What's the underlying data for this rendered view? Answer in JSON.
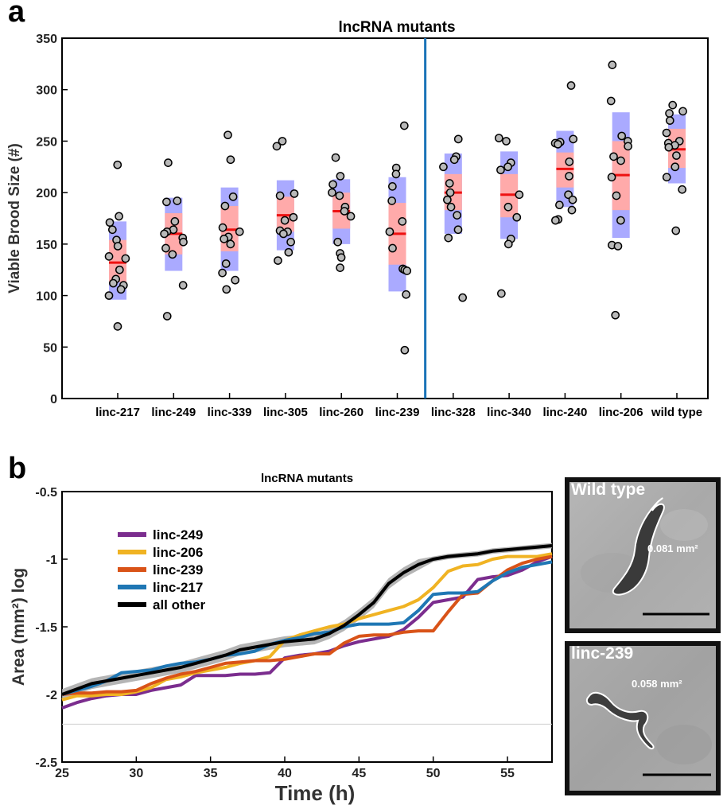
{
  "panels": {
    "a": {
      "letter": "a"
    },
    "b": {
      "letter": "b"
    }
  },
  "chart_data": [
    {
      "type": "scatter",
      "title": "lncRNA mutants",
      "xlabel": "",
      "ylabel": "Viable Brood Size (#)",
      "ylim": [
        0,
        350
      ],
      "yticks": [
        0,
        50,
        100,
        150,
        200,
        250,
        300,
        350
      ],
      "grid": false,
      "divider_between": [
        "linc-239",
        "linc-328"
      ],
      "colors": {
        "mean": "#ee1111",
        "sd_band": "#aaaaff",
        "sem_band": "#ffaaaa",
        "point_fill": "#b9b9b9",
        "divider": "#1a73b8"
      },
      "categories": [
        "linc-217",
        "linc-249",
        "linc-339",
        "linc-305",
        "linc-260",
        "linc-239",
        "linc-328",
        "linc-340",
        "linc-240",
        "linc-206",
        "wild type"
      ],
      "groups": [
        {
          "label": "linc-217",
          "mean": 132,
          "sem": [
            113,
            154
          ],
          "sd": [
            96,
            172
          ],
          "points": [
            227,
            177,
            171,
            164,
            154,
            148,
            138,
            136,
            125,
            116,
            112,
            110,
            106,
            100,
            70
          ]
        },
        {
          "label": "linc-249",
          "mean": 160,
          "sem": [
            140,
            180
          ],
          "sd": [
            124,
            195
          ],
          "points": [
            229,
            192,
            191,
            172,
            164,
            162,
            160,
            156,
            152,
            146,
            140,
            110,
            80
          ]
        },
        {
          "label": "linc-339",
          "mean": 164,
          "sem": [
            143,
            187
          ],
          "sd": [
            124,
            205
          ],
          "points": [
            256,
            232,
            196,
            187,
            166,
            162,
            157,
            155,
            150,
            131,
            122,
            115,
            106
          ]
        },
        {
          "label": "linc-305",
          "mean": 178,
          "sem": [
            162,
            196
          ],
          "sd": [
            144,
            212
          ],
          "points": [
            250,
            245,
            199,
            197,
            176,
            173,
            163,
            162,
            160,
            152,
            142,
            134
          ]
        },
        {
          "label": "linc-260",
          "mean": 182,
          "sem": [
            165,
            200
          ],
          "sd": [
            150,
            213
          ],
          "points": [
            234,
            216,
            208,
            200,
            197,
            186,
            182,
            177,
            152,
            141,
            137,
            127
          ]
        },
        {
          "label": "linc-239",
          "mean": 160,
          "sem": [
            130,
            190
          ],
          "sd": [
            104,
            215
          ],
          "points": [
            265,
            224,
            218,
            206,
            192,
            172,
            162,
            146,
            126,
            125,
            124,
            101,
            47
          ]
        },
        {
          "label": "linc-328",
          "mean": 200,
          "sem": [
            183,
            218
          ],
          "sd": [
            160,
            238
          ],
          "points": [
            252,
            235,
            232,
            225,
            209,
            200,
            193,
            186,
            178,
            164,
            156,
            98
          ]
        },
        {
          "label": "linc-340",
          "mean": 198,
          "sem": [
            176,
            218
          ],
          "sd": [
            155,
            240
          ],
          "points": [
            253,
            250,
            229,
            225,
            222,
            198,
            186,
            176,
            155,
            150,
            102
          ]
        },
        {
          "label": "linc-240",
          "mean": 223,
          "sem": [
            205,
            239
          ],
          "sd": [
            186,
            260
          ],
          "points": [
            304,
            252,
            249,
            248,
            247,
            230,
            216,
            198,
            193,
            188,
            183,
            174,
            173
          ]
        },
        {
          "label": "linc-206",
          "mean": 217,
          "sem": [
            183,
            250
          ],
          "sd": [
            156,
            278
          ],
          "points": [
            324,
            289,
            255,
            250,
            245,
            235,
            231,
            215,
            197,
            173,
            149,
            148,
            81
          ]
        },
        {
          "label": "wild type",
          "mean": 242,
          "sem": [
            224,
            262
          ],
          "sd": [
            209,
            276
          ],
          "points": [
            285,
            279,
            277,
            270,
            258,
            250,
            248,
            246,
            244,
            236,
            225,
            215,
            203,
            163
          ]
        }
      ]
    },
    {
      "type": "line",
      "title": "lncRNA mutants",
      "xlabel": "Time (h)",
      "ylabel": "Area (mm²) log",
      "xlim": [
        25,
        58
      ],
      "ylim": [
        -2.5,
        -0.5
      ],
      "xticks": [
        25,
        30,
        35,
        40,
        45,
        50,
        55
      ],
      "yticks": [
        -2.5,
        -2,
        -1.5,
        -1,
        -0.5
      ],
      "grid": false,
      "legend_position": "top-left",
      "reference_line_y": -2.22,
      "x": [
        25,
        26,
        27,
        28,
        29,
        30,
        31,
        32,
        33,
        34,
        35,
        36,
        37,
        38,
        39,
        40,
        41,
        42,
        43,
        44,
        45,
        46,
        47,
        48,
        49,
        50,
        51,
        52,
        53,
        54,
        55,
        56,
        57,
        58
      ],
      "band": {
        "upper": [
          -1.96,
          -1.92,
          -1.88,
          -1.86,
          -1.84,
          -1.82,
          -1.8,
          -1.78,
          -1.76,
          -1.73,
          -1.7,
          -1.67,
          -1.63,
          -1.61,
          -1.59,
          -1.57,
          -1.56,
          -1.55,
          -1.51,
          -1.45,
          -1.37,
          -1.28,
          -1.14,
          -1.06,
          -1.0,
          -0.98,
          -0.96,
          -0.95,
          -0.94,
          -0.92,
          -0.91,
          -0.9,
          -0.89,
          -0.88
        ],
        "lower": [
          -2.04,
          -2.0,
          -1.96,
          -1.94,
          -1.92,
          -1.9,
          -1.88,
          -1.86,
          -1.84,
          -1.81,
          -1.78,
          -1.75,
          -1.71,
          -1.69,
          -1.67,
          -1.65,
          -1.64,
          -1.63,
          -1.59,
          -1.53,
          -1.45,
          -1.36,
          -1.22,
          -1.14,
          -1.08,
          -1.02,
          -1.0,
          -0.99,
          -0.98,
          -0.96,
          -0.95,
          -0.94,
          -0.93,
          -0.92
        ]
      },
      "series": [
        {
          "name": "linc-249",
          "color": "#7b2d8e",
          "values": [
            -2.1,
            -2.06,
            -2.03,
            -2.01,
            -2.0,
            -2.0,
            -1.97,
            -1.95,
            -1.93,
            -1.86,
            -1.86,
            -1.86,
            -1.85,
            -1.85,
            -1.84,
            -1.73,
            -1.71,
            -1.7,
            -1.68,
            -1.64,
            -1.61,
            -1.59,
            -1.57,
            -1.52,
            -1.43,
            -1.32,
            -1.3,
            -1.28,
            -1.15,
            -1.13,
            -1.12,
            -1.08,
            -1.02,
            -0.98
          ]
        },
        {
          "name": "linc-206",
          "color": "#f0b323",
          "values": [
            -2.04,
            -2.01,
            -2.01,
            -2.0,
            -2.0,
            -1.98,
            -1.95,
            -1.89,
            -1.87,
            -1.84,
            -1.82,
            -1.8,
            -1.77,
            -1.75,
            -1.72,
            -1.6,
            -1.56,
            -1.53,
            -1.5,
            -1.48,
            -1.44,
            -1.41,
            -1.38,
            -1.35,
            -1.3,
            -1.21,
            -1.09,
            -1.05,
            -1.04,
            -1.0,
            -0.98,
            -0.98,
            -0.98,
            -0.96
          ]
        },
        {
          "name": "linc-239",
          "color": "#d95318",
          "values": [
            -2.0,
            -1.99,
            -1.99,
            -1.98,
            -1.98,
            -1.97,
            -1.92,
            -1.88,
            -1.85,
            -1.83,
            -1.8,
            -1.77,
            -1.76,
            -1.75,
            -1.75,
            -1.74,
            -1.72,
            -1.7,
            -1.7,
            -1.62,
            -1.57,
            -1.56,
            -1.56,
            -1.54,
            -1.53,
            -1.53,
            -1.39,
            -1.26,
            -1.25,
            -1.16,
            -1.08,
            -1.03,
            -1.0,
            -0.98
          ]
        },
        {
          "name": "linc-217",
          "color": "#1f77b4",
          "values": [
            -2.0,
            -1.97,
            -1.94,
            -1.9,
            -1.84,
            -1.83,
            -1.82,
            -1.79,
            -1.77,
            -1.76,
            -1.74,
            -1.71,
            -1.7,
            -1.68,
            -1.63,
            -1.6,
            -1.58,
            -1.55,
            -1.54,
            -1.5,
            -1.48,
            -1.48,
            -1.48,
            -1.47,
            -1.38,
            -1.26,
            -1.25,
            -1.25,
            -1.24,
            -1.16,
            -1.1,
            -1.06,
            -1.04,
            -1.02
          ]
        },
        {
          "name": "all other",
          "color": "#000000",
          "values": [
            -2.0,
            -1.96,
            -1.92,
            -1.9,
            -1.88,
            -1.86,
            -1.84,
            -1.82,
            -1.8,
            -1.77,
            -1.74,
            -1.71,
            -1.67,
            -1.65,
            -1.63,
            -1.61,
            -1.6,
            -1.59,
            -1.55,
            -1.49,
            -1.41,
            -1.32,
            -1.18,
            -1.1,
            -1.04,
            -1.0,
            -0.98,
            -0.97,
            -0.96,
            -0.94,
            -0.93,
            -0.92,
            -0.91,
            -0.9
          ]
        }
      ]
    }
  ],
  "insets": [
    {
      "label": "Wild type",
      "area_text": "0.081 mm²"
    },
    {
      "label": "linc-239",
      "area_text": "0.058 mm²"
    }
  ]
}
